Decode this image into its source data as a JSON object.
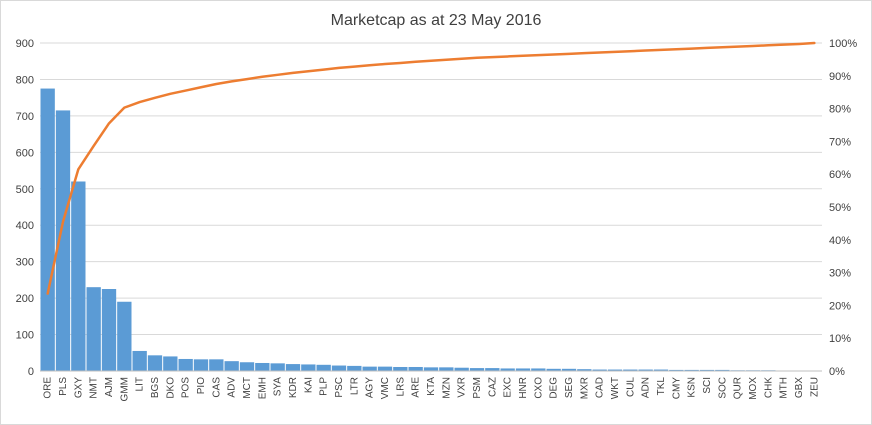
{
  "chart_data": {
    "type": "bar",
    "title": "Marketcap as at 23 May 2016",
    "categories": [
      "ORE",
      "PLS",
      "GXY",
      "NMT",
      "AJM",
      "GMM",
      "LIT",
      "BGS",
      "DKO",
      "POS",
      "PIO",
      "CAS",
      "ADV",
      "MCT",
      "EMH",
      "SYA",
      "KDR",
      "KAI",
      "PLP",
      "PSC",
      "LTR",
      "AGY",
      "VMC",
      "LRS",
      "ARE",
      "KTA",
      "MZN",
      "VXR",
      "PSM",
      "CAZ",
      "EXC",
      "HNR",
      "CXO",
      "DEG",
      "SEG",
      "MXR",
      "CAD",
      "WKT",
      "CUL",
      "ADN",
      "TKL",
      "CMY",
      "KSN",
      "SCI",
      "SOC",
      "QUR",
      "MOX",
      "CHK",
      "MTH",
      "GBX",
      "ZEU"
    ],
    "series": [
      {
        "type": "bar",
        "color": "#5b9bd5",
        "values": [
          775,
          715,
          520,
          230,
          225,
          190,
          55,
          43,
          40,
          33,
          32,
          32,
          27,
          24,
          22,
          21,
          19,
          18,
          17,
          15,
          14,
          12,
          12,
          11,
          11,
          10,
          10,
          9,
          8,
          8,
          7,
          7,
          7,
          6,
          6,
          5,
          4,
          4,
          4,
          4,
          4,
          3,
          3,
          3,
          3,
          2,
          2,
          2,
          1,
          1,
          1
        ]
      },
      {
        "type": "line",
        "color": "#ed7d31",
        "axis": "right",
        "values": [
          0.236,
          0.455,
          0.615,
          0.686,
          0.755,
          0.803,
          0.82,
          0.833,
          0.845,
          0.855,
          0.865,
          0.875,
          0.883,
          0.89,
          0.897,
          0.903,
          0.909,
          0.914,
          0.919,
          0.924,
          0.928,
          0.932,
          0.936,
          0.939,
          0.943,
          0.946,
          0.949,
          0.952,
          0.955,
          0.957,
          0.959,
          0.961,
          0.963,
          0.965,
          0.967,
          0.969,
          0.971,
          0.973,
          0.975,
          0.977,
          0.979,
          0.981,
          0.983,
          0.985,
          0.987,
          0.989,
          0.991,
          0.993,
          0.995,
          0.997,
          1.0
        ]
      }
    ],
    "ylim": [
      0,
      900
    ],
    "yticks": [
      "0",
      "100",
      "200",
      "300",
      "400",
      "500",
      "600",
      "700",
      "800",
      "900"
    ],
    "y2lim": [
      0,
      1
    ],
    "y2ticks": [
      "0%",
      "10%",
      "20%",
      "30%",
      "40%",
      "50%",
      "60%",
      "70%",
      "80%",
      "90%",
      "100%"
    ],
    "grid": true,
    "legend": "none"
  }
}
